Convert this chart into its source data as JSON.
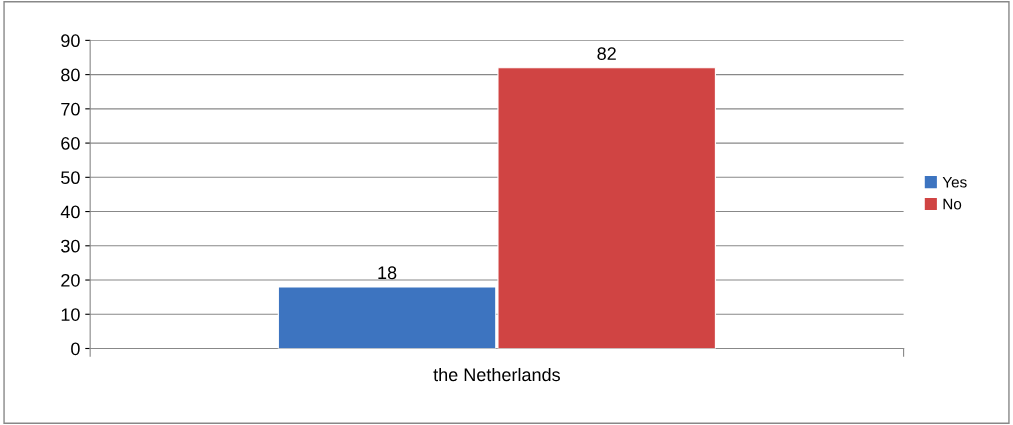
{
  "chart_data": {
    "type": "bar",
    "categories": [
      "the Netherlands"
    ],
    "series": [
      {
        "name": "Yes",
        "color": "#3d74c0",
        "values": [
          18
        ]
      },
      {
        "name": "No",
        "color": "#d04443",
        "values": [
          82
        ]
      }
    ],
    "ylim": [
      0,
      90
    ],
    "yticks": [
      0,
      10,
      20,
      30,
      40,
      50,
      60,
      70,
      80,
      90
    ],
    "grid": "y",
    "legend": "right",
    "data_labels": true
  }
}
